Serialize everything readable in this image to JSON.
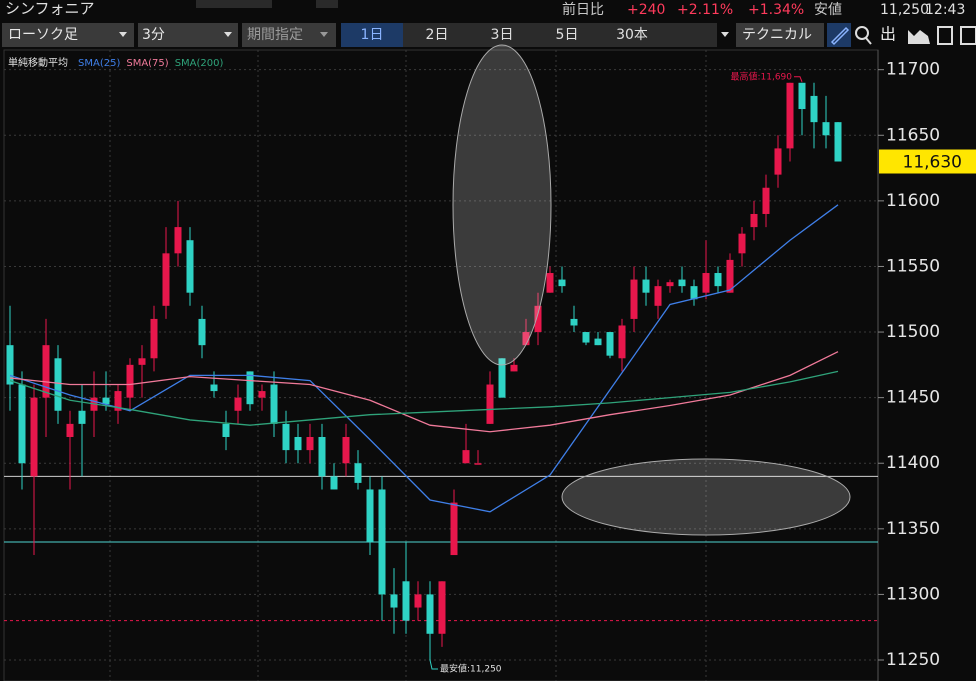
{
  "header": {
    "name": "シンフォニア",
    "change_label": "前日比",
    "change": "+240",
    "change_pct": "+2.11%",
    "change_pct2": "+1.34%",
    "low_label": "安値",
    "low": "11,250",
    "time": "12:43"
  },
  "toolbar": {
    "chart_kind": "ローソク足",
    "interval": "3分",
    "period": "期間指定",
    "ranges": [
      "1日",
      "2日",
      "3日",
      "5日",
      "30本"
    ],
    "technical": "テクニカル",
    "icon_label": "出"
  },
  "chart_data": {
    "type": "candlestick",
    "legend_title": "単純移動平均",
    "up_color": "#e8174c",
    "down_color": "#2fd3c5",
    "open": [
      11490,
      11460,
      11390,
      11450,
      11480,
      11420,
      11440,
      11440,
      11450,
      11440,
      11450,
      11475,
      11480,
      11520,
      11560,
      11570,
      11510,
      11460,
      11430,
      11440,
      11470,
      11450,
      11460,
      11430,
      11420,
      11410,
      11420,
      11390,
      11400,
      11400,
      11380,
      11380,
      11300,
      11310,
      11290,
      11300,
      11270,
      11330,
      11400,
      11400,
      11430,
      11480,
      11470,
      11490,
      11500,
      11530,
      11540,
      11510,
      11500,
      11495,
      11500,
      11480,
      11510,
      11540,
      11520,
      11535,
      11540,
      11535,
      11530,
      11545,
      11530,
      11560,
      11580,
      11590,
      11620,
      11640,
      11690,
      11680,
      11660,
      11660
    ],
    "high": [
      11520,
      11470,
      11460,
      11510,
      11490,
      11440,
      11460,
      11470,
      11470,
      11460,
      11480,
      11490,
      11520,
      11580,
      11600,
      11580,
      11520,
      11470,
      11440,
      11460,
      11470,
      11460,
      11470,
      11440,
      11430,
      11430,
      11430,
      11400,
      11430,
      11410,
      11390,
      11390,
      11320,
      11340,
      11310,
      11310,
      11310,
      11380,
      11430,
      11410,
      11470,
      11480,
      11480,
      11510,
      11530,
      11550,
      11550,
      11520,
      11500,
      11500,
      11500,
      11510,
      11550,
      11550,
      11540,
      11540,
      11550,
      11540,
      11570,
      11550,
      11560,
      11580,
      11600,
      11620,
      11650,
      11690,
      11690,
      11690,
      11680,
      11660
    ],
    "low": [
      11440,
      11380,
      11330,
      11420,
      11430,
      11380,
      11390,
      11420,
      11440,
      11430,
      11440,
      11450,
      11470,
      11510,
      11550,
      11520,
      11480,
      11450,
      11410,
      11430,
      11440,
      11440,
      11420,
      11400,
      11400,
      11400,
      11380,
      11380,
      11390,
      11380,
      11330,
      11280,
      11270,
      11270,
      11280,
      11250,
      11260,
      11330,
      11400,
      11400,
      11430,
      11450,
      11470,
      11490,
      11490,
      11530,
      11530,
      11500,
      11490,
      11490,
      11480,
      11470,
      11500,
      11520,
      11510,
      11530,
      11530,
      11520,
      11525,
      11530,
      11530,
      11550,
      11570,
      11580,
      11610,
      11630,
      11650,
      11640,
      11640,
      11630
    ],
    "close": [
      11460,
      11400,
      11450,
      11490,
      11440,
      11430,
      11430,
      11450,
      11445,
      11455,
      11475,
      11480,
      11510,
      11560,
      11580,
      11530,
      11490,
      11455,
      11420,
      11450,
      11445,
      11455,
      11430,
      11410,
      11410,
      11420,
      11390,
      11380,
      11420,
      11385,
      11340,
      11300,
      11290,
      11280,
      11300,
      11270,
      11310,
      11370,
      11410,
      11400,
      11460,
      11450,
      11475,
      11500,
      11520,
      11545,
      11535,
      11505,
      11492,
      11490,
      11482,
      11505,
      11540,
      11530,
      11535,
      11538,
      11535,
      11525,
      11545,
      11535,
      11555,
      11575,
      11590,
      11610,
      11640,
      11690,
      11670,
      11660,
      11650,
      11630
    ],
    "series": [
      {
        "name": "SMA(25)",
        "color": "#3f7fe8",
        "x": [
          0,
          5,
          10,
          15,
          20,
          25,
          30,
          35,
          40,
          45,
          50,
          55,
          60,
          65,
          69
        ],
        "values": [
          11467,
          11452,
          11440,
          11467,
          11467,
          11463,
          11418,
          11372,
          11363,
          11391,
          11456,
          11521,
          11532,
          11570,
          11597
        ]
      },
      {
        "name": "SMA(75)",
        "color": "#f07a9a",
        "x": [
          0,
          5,
          10,
          15,
          20,
          25,
          30,
          35,
          40,
          45,
          50,
          55,
          60,
          65,
          69
        ],
        "values": [
          11465,
          11460,
          11460,
          11466,
          11463,
          11460,
          11448,
          11429,
          11424,
          11429,
          11437,
          11444,
          11452,
          11467,
          11485
        ]
      },
      {
        "name": "SMA(200)",
        "color": "#2fa37a",
        "x": [
          0,
          5,
          10,
          15,
          20,
          25,
          30,
          35,
          40,
          45,
          50,
          55,
          60,
          65,
          69
        ],
        "values": [
          11463,
          11448,
          11441,
          11433,
          11429,
          11433,
          11437,
          11439,
          11441,
          11443,
          11446,
          11450,
          11454,
          11462,
          11470
        ]
      }
    ],
    "ylim": [
      11234,
      11715
    ],
    "yticks": [
      11250,
      11300,
      11350,
      11400,
      11450,
      11500,
      11550,
      11600,
      11650,
      11700
    ],
    "hlines": [
      {
        "value": 11390,
        "color": "#d0d0d0"
      },
      {
        "value": 11340,
        "color": "#4fd6d0"
      },
      {
        "value": 11280,
        "color": "#e8174c"
      }
    ],
    "current": {
      "value": 11630,
      "label": "11,630"
    },
    "high_note": {
      "index": 66,
      "value": 11690,
      "label": "最高値:11,690"
    },
    "low_note": {
      "index": 35,
      "value": 11250,
      "label": "最安値:11,250"
    },
    "grid": true
  }
}
